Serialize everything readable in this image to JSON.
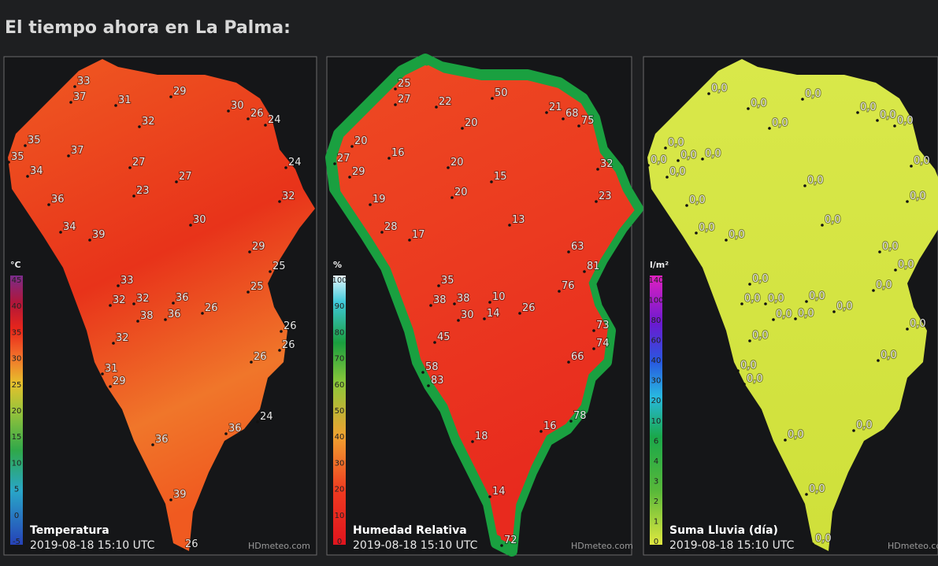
{
  "header": {
    "title": "El tiempo ahora en La Palma:"
  },
  "panels": [
    {
      "title": "Temperatura",
      "timestamp": "2019-08-18 15:10 UTC",
      "watermark": "HDmeteo.com",
      "unit": "°C",
      "scale": [
        45,
        40,
        35,
        30,
        25,
        20,
        15,
        10,
        5,
        0,
        -5
      ],
      "stations": [
        33,
        37,
        31,
        29,
        30,
        26,
        24,
        32,
        35,
        35,
        37,
        34,
        27,
        27,
        23,
        24,
        36,
        32,
        30,
        34,
        39,
        29,
        25,
        33,
        25,
        32,
        32,
        36,
        38,
        36,
        26,
        26,
        26,
        32,
        26,
        31,
        29,
        24,
        36,
        36,
        39,
        26
      ]
    },
    {
      "title": "Humedad Relativa",
      "timestamp": "2019-08-18 15:10 UTC",
      "watermark": "HDmeteo.com",
      "unit": "%",
      "scale": [
        100,
        90,
        80,
        70,
        60,
        50,
        40,
        30,
        20,
        10,
        0
      ],
      "stations": [
        25,
        27,
        22,
        50,
        21,
        68,
        75,
        20,
        20,
        27,
        16,
        20,
        29,
        15,
        32,
        20,
        19,
        23,
        13,
        28,
        17,
        63,
        81,
        35,
        76,
        38,
        38,
        10,
        14,
        30,
        26,
        73,
        74,
        45,
        66,
        58,
        83,
        78,
        16,
        18,
        14,
        72
      ]
    },
    {
      "title": "Suma Lluvia (día)",
      "timestamp": "2019-08-18 15:10 UTC",
      "watermark": "HDmeteo.com",
      "unit": "l/m²",
      "scale": [
        140,
        100,
        80,
        60,
        40,
        30,
        20,
        10,
        6,
        4,
        3,
        2,
        1,
        0
      ],
      "stations": [
        "0,0",
        "0,0",
        "0,0",
        "0,0",
        "0,0",
        "0,0",
        "0,0",
        "0,0",
        "0,0",
        "0,0",
        "0,0",
        "0,0",
        "0,0",
        "0,0",
        "0,0",
        "0,0",
        "0,0",
        "0,0",
        "0,0",
        "0,0",
        "0,0",
        "0,0",
        "0,0",
        "0,0",
        "0,0",
        "0,0",
        "0,0",
        "0,0",
        "0,0",
        "0,0",
        "0,0",
        "0,0",
        "0,0",
        "0,0",
        "0,0",
        "0,0",
        "0,0",
        "0,0"
      ]
    }
  ]
}
